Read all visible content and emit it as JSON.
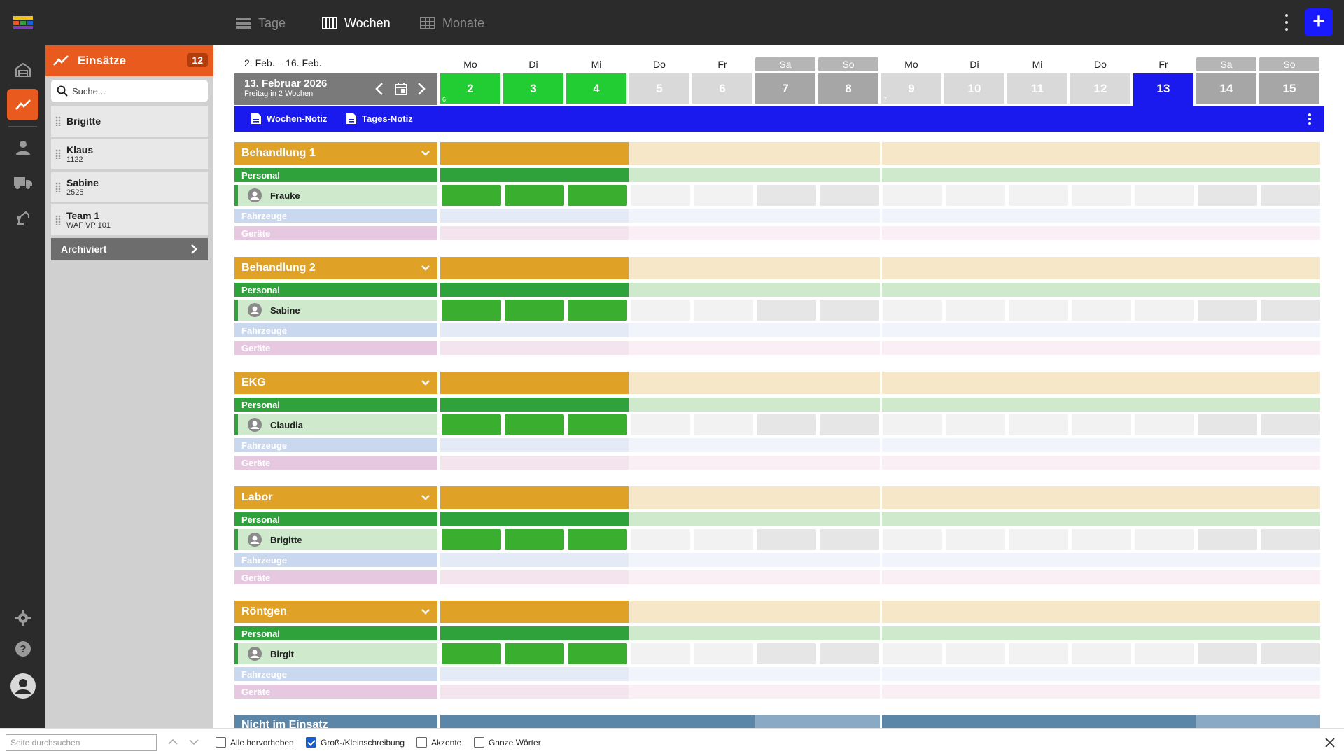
{
  "topbar": {
    "views": [
      {
        "label": "Tage",
        "active": false
      },
      {
        "label": "Wochen",
        "active": true
      },
      {
        "label": "Monate",
        "active": false
      }
    ],
    "add_label": "+"
  },
  "panel": {
    "title": "Einsätze",
    "count": "12",
    "search_placeholder": "Suche...",
    "items": [
      {
        "name": "Brigitte",
        "sub": ""
      },
      {
        "name": "Klaus",
        "sub": "1122"
      },
      {
        "name": "Sabine",
        "sub": "2525"
      },
      {
        "name": "Team 1",
        "sub": "WAF VP 101"
      }
    ],
    "archived_label": "Archiviert"
  },
  "calendar": {
    "range": "2. Feb. – 16. Feb.",
    "current_date": "13. Februar 2026",
    "current_sub": "Freitag in 2 Wochen",
    "days": [
      {
        "wd": "Mo",
        "num": "2",
        "state": "done",
        "small": "6"
      },
      {
        "wd": "Di",
        "num": "3",
        "state": "done",
        "small": ""
      },
      {
        "wd": "Mi",
        "num": "4",
        "state": "done",
        "small": ""
      },
      {
        "wd": "Do",
        "num": "5",
        "state": "plain",
        "small": ""
      },
      {
        "wd": "Fr",
        "num": "6",
        "state": "plain",
        "small": ""
      },
      {
        "wd": "Sa",
        "num": "7",
        "state": "weekend",
        "small": ""
      },
      {
        "wd": "So",
        "num": "8",
        "state": "weekend",
        "small": ""
      },
      {
        "wd": "Mo",
        "num": "9",
        "state": "plain",
        "small": "7"
      },
      {
        "wd": "Di",
        "num": "10",
        "state": "plain",
        "small": ""
      },
      {
        "wd": "Mi",
        "num": "11",
        "state": "plain",
        "small": ""
      },
      {
        "wd": "Do",
        "num": "12",
        "state": "plain",
        "small": ""
      },
      {
        "wd": "Fr",
        "num": "13",
        "state": "today",
        "small": ""
      },
      {
        "wd": "Sa",
        "num": "14",
        "state": "weekend",
        "small": ""
      },
      {
        "wd": "So",
        "num": "15",
        "state": "weekend",
        "small": ""
      }
    ],
    "week_note": "Wochen-Notiz",
    "day_note": "Tages-Notiz"
  },
  "sections": [
    {
      "title": "Behandlung 1",
      "personal": "Personal",
      "person": "Frauke",
      "vehicles": "Fahrzeuge",
      "devices": "Geräte"
    },
    {
      "title": "Behandlung 2",
      "personal": "Personal",
      "person": "Sabine",
      "vehicles": "Fahrzeuge",
      "devices": "Geräte"
    },
    {
      "title": "EKG",
      "personal": "Personal",
      "person": "Claudia",
      "vehicles": "Fahrzeuge",
      "devices": "Geräte"
    },
    {
      "title": "Labor",
      "personal": "Personal",
      "person": "Brigitte",
      "vehicles": "Fahrzeuge",
      "devices": "Geräte"
    },
    {
      "title": "Röntgen",
      "personal": "Personal",
      "person": "Birgit",
      "vehicles": "Fahrzeuge",
      "devices": "Geräte"
    }
  ],
  "not_assigned": "Nicht im Einsatz",
  "findbar": {
    "placeholder": "Seite durchsuchen",
    "options": [
      {
        "label": "Alle hervorheben",
        "checked": false
      },
      {
        "label": "Groß-/Kleinschreibung",
        "checked": true
      },
      {
        "label": "Akzente",
        "checked": false
      },
      {
        "label": "Ganze Wörter",
        "checked": false
      }
    ]
  },
  "colors": {
    "accent": "#e85a1e",
    "today": "#1a1aee",
    "done": "#22cc33",
    "section": "#e0a127",
    "personal": "#2fa23c"
  }
}
